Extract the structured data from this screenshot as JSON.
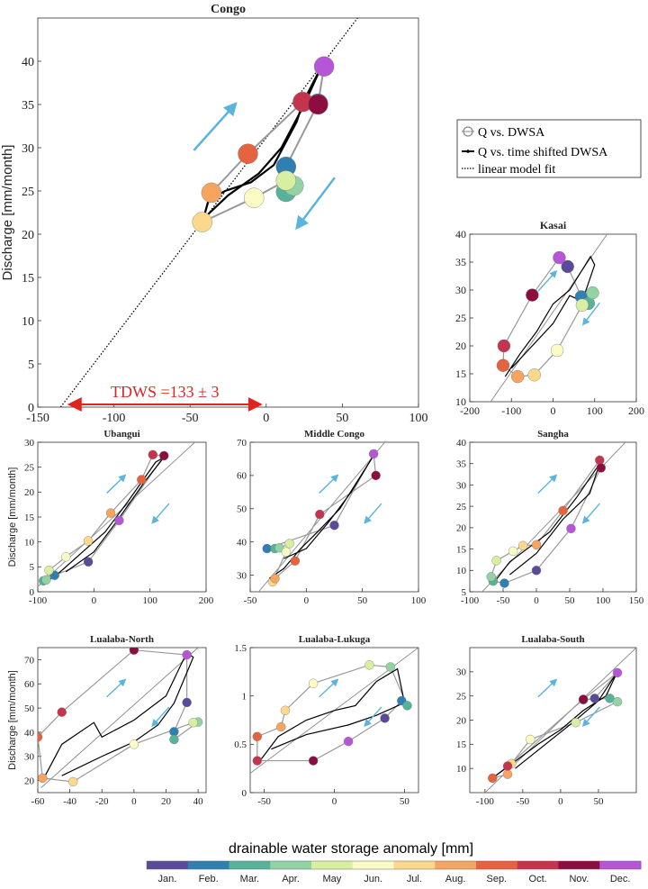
{
  "legend": {
    "entries": [
      "Q vs. DWSA",
      "Q vs. time shifted DWSA",
      "linear model fit"
    ]
  },
  "colorbar": {
    "label": "drainable water storage anomaly [mm]",
    "months": [
      "Jan.",
      "Feb.",
      "Mar.",
      "Apr.",
      "May",
      "Jun.",
      "Jul.",
      "Aug.",
      "Sep.",
      "Oct.",
      "Nov.",
      "Dec."
    ],
    "colors": [
      "#5b4a9b",
      "#2f7fb2",
      "#56b39a",
      "#93d2a3",
      "#d8eea0",
      "#fbfbc6",
      "#fbd88c",
      "#f6a45e",
      "#e5633f",
      "#c5344d",
      "#8c0d3e",
      "#b655d6"
    ]
  },
  "chart_data": [
    {
      "id": "congo",
      "type": "scatter",
      "title": "Congo",
      "xlabel": "",
      "ylabel": "Discharge [mm/month]",
      "xlim": [
        -150,
        100
      ],
      "ylim": [
        0,
        45
      ],
      "xticks": [
        -150,
        -100,
        -50,
        0,
        50,
        100
      ],
      "yticks": [
        0,
        5,
        10,
        15,
        20,
        25,
        30,
        35,
        40
      ],
      "points": [
        [
          34,
          35.1
        ],
        [
          13,
          27.8
        ],
        [
          13,
          24.9
        ],
        [
          18,
          25.6
        ],
        [
          13,
          26.2
        ],
        [
          -8,
          24.2
        ],
        [
          -42,
          21.4
        ],
        [
          -36,
          24.8
        ],
        [
          -12,
          29.3
        ],
        [
          24,
          35.3
        ],
        [
          34,
          35
        ],
        [
          38,
          39.4
        ]
      ],
      "shifted": [
        [
          -42,
          21.3
        ],
        [
          -38,
          23.9
        ],
        [
          -27,
          25
        ],
        [
          -10,
          26
        ],
        [
          5,
          28
        ],
        [
          20,
          33
        ],
        [
          24,
          35.2
        ],
        [
          36,
          39.3
        ],
        [
          25,
          35
        ],
        [
          10,
          30
        ],
        [
          -5,
          27
        ],
        [
          -25,
          24.5
        ],
        [
          -40,
          22
        ]
      ],
      "fit": [
        [
          -135,
          0
        ],
        [
          60,
          45
        ]
      ],
      "annotation": "TDWS =133 ± 3",
      "annotation_range": [
        -133,
        0
      ]
    },
    {
      "id": "kasai",
      "type": "scatter",
      "title": "Kasai",
      "xlabel": "",
      "ylabel": "",
      "xlim": [
        -200,
        200
      ],
      "ylim": [
        10,
        40
      ],
      "xticks": [
        -200,
        -100,
        0,
        100,
        200
      ],
      "yticks": [
        10,
        15,
        20,
        25,
        30,
        35,
        40
      ],
      "points": [
        [
          35,
          34.2
        ],
        [
          68,
          28.8
        ],
        [
          85,
          27.6
        ],
        [
          95,
          29.5
        ],
        [
          70,
          27.3
        ],
        [
          10,
          19.2
        ],
        [
          -45,
          14.8
        ],
        [
          -85,
          14.5
        ],
        [
          -120,
          16.5
        ],
        [
          -118,
          20
        ],
        [
          -50,
          29.1
        ],
        [
          15,
          35.8
        ]
      ],
      "shifted": [
        [
          -115,
          14.5
        ],
        [
          -80,
          18.5
        ],
        [
          -40,
          22.5
        ],
        [
          0,
          27.5
        ],
        [
          40,
          30
        ],
        [
          90,
          36
        ],
        [
          100,
          34.5
        ],
        [
          70,
          28
        ],
        [
          40,
          29
        ],
        [
          0,
          24
        ],
        [
          -50,
          20
        ],
        [
          -100,
          16
        ]
      ],
      "fit": [
        [
          -150,
          10
        ],
        [
          130,
          40
        ]
      ]
    },
    {
      "id": "ubangui",
      "type": "scatter",
      "title": "Ubangui",
      "xlabel": "",
      "ylabel": "Discharge [mm/month]",
      "xlim": [
        -100,
        200
      ],
      "ylim": [
        0,
        30
      ],
      "xticks": [
        -100,
        0,
        100,
        200
      ],
      "yticks": [
        0,
        5,
        10,
        15,
        20,
        25,
        30
      ],
      "points": [
        [
          -10,
          6
        ],
        [
          -70,
          3.3
        ],
        [
          -90,
          2.2
        ],
        [
          -85,
          2.4
        ],
        [
          -80,
          4.3
        ],
        [
          -50,
          7
        ],
        [
          -10,
          10.2
        ],
        [
          30,
          15.8
        ],
        [
          85,
          22.5
        ],
        [
          105,
          27.5
        ],
        [
          125,
          27.3
        ],
        [
          45,
          14.3
        ]
      ],
      "shifted": [
        [
          -85,
          2
        ],
        [
          -60,
          4
        ],
        [
          -20,
          8
        ],
        [
          20,
          12
        ],
        [
          60,
          18
        ],
        [
          110,
          26
        ],
        [
          125,
          27
        ],
        [
          90,
          22
        ],
        [
          40,
          14
        ],
        [
          0,
          8
        ],
        [
          -50,
          4
        ]
      ],
      "fit": [
        [
          -110,
          0
        ],
        [
          180,
          30
        ]
      ]
    },
    {
      "id": "middle-congo",
      "type": "scatter",
      "title": "Middle Congo",
      "xlabel": "",
      "ylabel": "",
      "xlim": [
        -50,
        100
      ],
      "ylim": [
        25,
        70
      ],
      "xticks": [
        -50,
        0,
        50,
        100
      ],
      "yticks": [
        30,
        40,
        50,
        60,
        70
      ],
      "points": [
        [
          25,
          45
        ],
        [
          -35,
          38
        ],
        [
          -28,
          38
        ],
        [
          -24,
          38.2
        ],
        [
          -15,
          39.5
        ],
        [
          -18,
          37
        ],
        [
          -30,
          28
        ],
        [
          -28,
          29
        ],
        [
          -10,
          34.3
        ],
        [
          12,
          48.3
        ],
        [
          62,
          60
        ],
        [
          60,
          66.5
        ]
      ],
      "shifted": [
        [
          -33,
          29
        ],
        [
          -20,
          32
        ],
        [
          -5,
          38
        ],
        [
          10,
          43
        ],
        [
          30,
          50
        ],
        [
          60,
          66
        ],
        [
          40,
          55
        ],
        [
          20,
          46
        ],
        [
          0,
          38
        ],
        [
          -20,
          35
        ]
      ],
      "fit": [
        [
          -50,
          22
        ],
        [
          75,
          72
        ]
      ]
    },
    {
      "id": "sangha",
      "type": "scatter",
      "title": "Sangha",
      "xlabel": "",
      "ylabel": "",
      "xlim": [
        -100,
        150
      ],
      "ylim": [
        5,
        40
      ],
      "xticks": [
        -100,
        -50,
        0,
        50,
        100,
        150
      ],
      "yticks": [
        5,
        10,
        15,
        20,
        25,
        30,
        35,
        40
      ],
      "points": [
        [
          0,
          10
        ],
        [
          -48,
          7
        ],
        [
          -65,
          7.5
        ],
        [
          -68,
          8.5
        ],
        [
          -60,
          12.3
        ],
        [
          -35,
          14.5
        ],
        [
          -20,
          15.8
        ],
        [
          0,
          16
        ],
        [
          40,
          24
        ],
        [
          95,
          35.8
        ],
        [
          97,
          34
        ],
        [
          52,
          19.8
        ]
      ],
      "shifted": [
        [
          -62,
          7.5
        ],
        [
          -40,
          12
        ],
        [
          -10,
          15.5
        ],
        [
          20,
          19
        ],
        [
          60,
          27
        ],
        [
          95,
          35
        ],
        [
          80,
          28
        ],
        [
          40,
          22
        ],
        [
          0,
          14
        ],
        [
          -40,
          9
        ]
      ],
      "fit": [
        [
          -100,
          2
        ],
        [
          140,
          41
        ]
      ]
    },
    {
      "id": "lualaba-north",
      "type": "scatter",
      "title": "Lualaba-North",
      "xlabel": "",
      "ylabel": "Discharge [mm/month]",
      "xlim": [
        -60,
        45
      ],
      "ylim": [
        15,
        75
      ],
      "xticks": [
        -60,
        -40,
        -20,
        0,
        20,
        40
      ],
      "yticks": [
        20,
        30,
        40,
        50,
        60,
        70
      ],
      "points": [
        [
          33,
          52.3
        ],
        [
          25,
          40.2
        ],
        [
          25,
          37
        ],
        [
          40,
          44.2
        ],
        [
          37,
          44
        ],
        [
          0,
          35
        ],
        [
          -38,
          19.5
        ],
        [
          -57,
          21
        ],
        [
          -60,
          38
        ],
        [
          -45,
          48.3
        ],
        [
          0,
          74
        ],
        [
          33,
          72
        ]
      ],
      "shifted": [
        [
          -57,
          20
        ],
        [
          -45,
          35
        ],
        [
          -25,
          44
        ],
        [
          -20,
          38
        ],
        [
          0,
          45
        ],
        [
          20,
          55
        ],
        [
          33,
          73
        ],
        [
          37,
          71
        ],
        [
          25,
          52
        ],
        [
          15,
          43
        ],
        [
          0,
          36
        ],
        [
          -20,
          30
        ],
        [
          -45,
          22
        ]
      ],
      "fit": [
        [
          -58,
          17
        ],
        [
          40,
          75
        ]
      ]
    },
    {
      "id": "lualaba-lukuga",
      "type": "scatter",
      "title": "Lualaba-Lukuga",
      "xlabel": "",
      "ylabel": "",
      "xlim": [
        -60,
        60
      ],
      "ylim": [
        0,
        1.5
      ],
      "xticks": [
        -50,
        0,
        50
      ],
      "yticks": [
        0,
        0.5,
        1,
        1.5
      ],
      "points": [
        [
          36,
          0.77
        ],
        [
          48,
          0.95
        ],
        [
          52,
          0.9
        ],
        [
          40,
          1.3
        ],
        [
          25,
          1.32
        ],
        [
          -15,
          1.13
        ],
        [
          -35,
          0.85
        ],
        [
          -38,
          0.68
        ],
        [
          -55,
          0.58
        ],
        [
          -55,
          0.33
        ],
        [
          -15,
          0.33
        ],
        [
          10,
          0.53
        ]
      ],
      "shifted": [
        [
          -53,
          0.33
        ],
        [
          -40,
          0.58
        ],
        [
          -20,
          0.75
        ],
        [
          0,
          0.85
        ],
        [
          15,
          0.9
        ],
        [
          30,
          1.15
        ],
        [
          45,
          1.28
        ],
        [
          50,
          0.93
        ],
        [
          30,
          0.8
        ],
        [
          10,
          0.7
        ],
        [
          -20,
          0.6
        ],
        [
          -45,
          0.45
        ]
      ],
      "fit": [
        [
          -60,
          0.2
        ],
        [
          60,
          1.5
        ]
      ]
    },
    {
      "id": "lualaba-south",
      "type": "scatter",
      "title": "Lualaba-South",
      "xlabel": "",
      "ylabel": "",
      "xlim": [
        -120,
        100
      ],
      "ylim": [
        5,
        35
      ],
      "xticks": [
        -100,
        -50,
        0,
        50
      ],
      "yticks": [
        10,
        15,
        20,
        25,
        30
      ],
      "points": [
        [
          45,
          24.5
        ],
        [
          30,
          24.2
        ],
        [
          65,
          24.5
        ],
        [
          75,
          23.8
        ],
        [
          20,
          19.5
        ],
        [
          -40,
          16
        ],
        [
          -65,
          11
        ],
        [
          -70,
          8.8
        ],
        [
          -90,
          8
        ],
        [
          -70,
          10.5
        ],
        [
          30,
          24.3
        ],
        [
          75,
          29.8
        ]
      ],
      "shifted": [
        [
          -90,
          8
        ],
        [
          -60,
          11.5
        ],
        [
          -30,
          15
        ],
        [
          0,
          18
        ],
        [
          30,
          22
        ],
        [
          60,
          25
        ],
        [
          75,
          30
        ],
        [
          50,
          24
        ],
        [
          20,
          20
        ],
        [
          -20,
          15
        ],
        [
          -60,
          10
        ]
      ],
      "fit": [
        [
          -120,
          2
        ],
        [
          100,
          35
        ]
      ]
    }
  ]
}
